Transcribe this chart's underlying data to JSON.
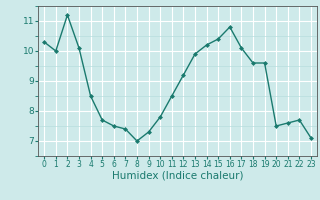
{
  "x": [
    0,
    1,
    2,
    3,
    4,
    5,
    6,
    7,
    8,
    9,
    10,
    11,
    12,
    13,
    14,
    15,
    16,
    17,
    18,
    19,
    20,
    21,
    22,
    23
  ],
  "y": [
    10.3,
    10.0,
    11.2,
    10.1,
    8.5,
    7.7,
    7.5,
    7.4,
    7.0,
    7.3,
    7.8,
    8.5,
    9.2,
    9.9,
    10.2,
    10.4,
    10.8,
    10.1,
    9.6,
    9.6,
    7.5,
    7.6,
    7.7,
    7.1
  ],
  "line_color": "#1a7a6e",
  "marker": "D",
  "marker_size": 2.0,
  "bg_color": "#ceeaea",
  "grid_major_color": "#ffffff",
  "grid_minor_color": "#b8dede",
  "tick_color": "#1a7a6e",
  "xlabel": "Humidex (Indice chaleur)",
  "xlabel_fontsize": 7.5,
  "tick_fontsize": 5.5,
  "ytick_fontsize": 6.5,
  "ylim": [
    6.5,
    11.5
  ],
  "xlim": [
    -0.5,
    23.5
  ],
  "yticks": [
    7,
    8,
    9,
    10,
    11
  ],
  "xticks": [
    0,
    1,
    2,
    3,
    4,
    5,
    6,
    7,
    8,
    9,
    10,
    11,
    12,
    13,
    14,
    15,
    16,
    17,
    18,
    19,
    20,
    21,
    22,
    23
  ],
  "line_width": 1.0,
  "spine_color": "#555555"
}
